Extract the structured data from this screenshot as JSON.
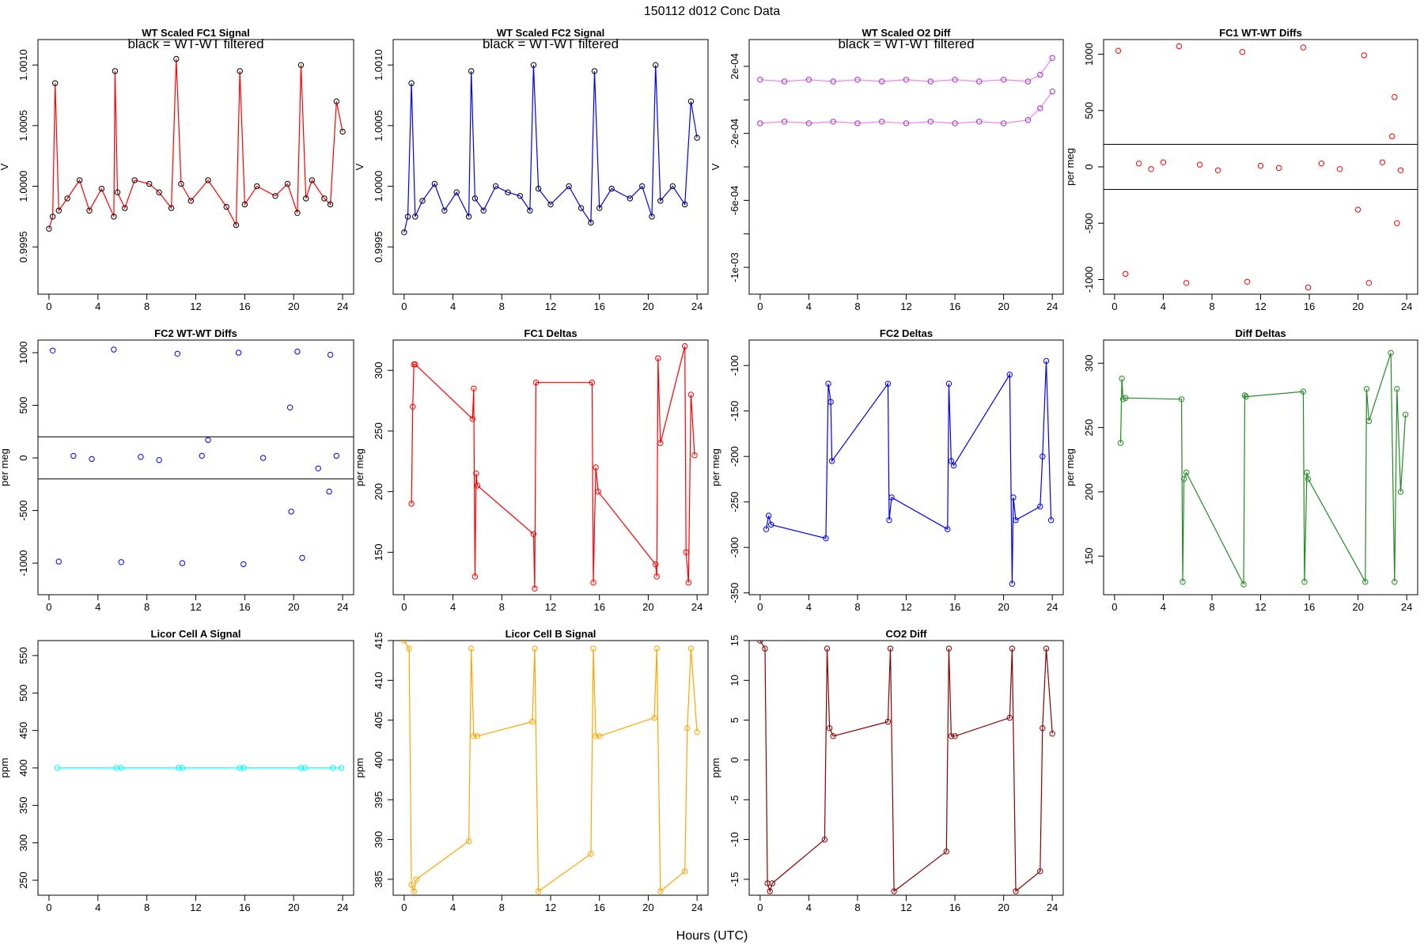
{
  "figure": {
    "suptitle": "150112    d012    Conc Data",
    "xlabel": "Hours (UTC)"
  },
  "chart_data": [
    {
      "type": "line",
      "title": "WT Scaled FC1 Signal",
      "annotation": "black = WT-WT filtered",
      "ylabel": "V",
      "color": "#ff0000",
      "marker_color": "#000000",
      "xlim": [
        -0.9,
        24.9
      ],
      "ylim": [
        0.99911,
        1.00121
      ],
      "xticks": [
        0,
        4,
        8,
        12,
        16,
        20,
        24
      ],
      "xtick_labels": [
        "0",
        "4",
        "8",
        "12",
        "16",
        "20",
        "24"
      ],
      "yticks": [
        0.9995,
        1.0,
        1.0005,
        1.001
      ],
      "ytick_labels": [
        "0.9995",
        "1.0000",
        "1.0005",
        "1.0010"
      ],
      "series": [
        {
          "x": [
            0.0,
            0.3,
            0.5,
            0.8,
            1.5,
            2.5,
            3.3,
            4.3,
            5.3,
            5.4,
            5.6,
            6.2,
            7.0,
            8.2,
            9.0,
            10.0,
            10.4,
            10.8,
            11.6,
            13.0,
            14.5,
            15.3,
            15.6,
            16.0,
            17.0,
            18.5,
            19.5,
            20.3,
            20.6,
            21.0,
            21.5,
            22.5,
            23.0,
            23.5,
            24.0
          ],
          "y": [
            0.99965,
            0.99975,
            1.00085,
            0.9998,
            0.9999,
            1.00005,
            0.9998,
            0.99998,
            0.99975,
            1.00095,
            0.99995,
            0.99982,
            1.00005,
            1.00002,
            0.99995,
            0.99982,
            1.00105,
            1.00002,
            0.99988,
            1.00005,
            0.99983,
            0.99968,
            1.00095,
            0.99985,
            1.0,
            0.99992,
            1.00002,
            0.99978,
            1.001,
            0.9999,
            1.00005,
            0.9999,
            0.99985,
            1.0007,
            1.00045
          ]
        }
      ]
    },
    {
      "type": "line",
      "title": "WT Scaled FC2 Signal",
      "annotation": "black = WT-WT filtered",
      "ylabel": "V",
      "color": "#0000ff",
      "marker_color": "#000000",
      "xlim": [
        -0.9,
        24.9
      ],
      "ylim": [
        0.99911,
        1.00121
      ],
      "xticks": [
        0,
        4,
        8,
        12,
        16,
        20,
        24
      ],
      "xtick_labels": [
        "0",
        "4",
        "8",
        "12",
        "16",
        "20",
        "24"
      ],
      "yticks": [
        0.9995,
        1.0,
        1.0005,
        1.001
      ],
      "ytick_labels": [
        "0.9995",
        "1.0000",
        "1.0005",
        "1.0010"
      ],
      "series": [
        {
          "x": [
            0.0,
            0.3,
            0.6,
            0.9,
            1.5,
            2.5,
            3.3,
            4.3,
            5.3,
            5.5,
            5.8,
            6.5,
            7.5,
            8.5,
            9.5,
            10.3,
            10.6,
            11.0,
            12.0,
            13.5,
            14.5,
            15.3,
            15.6,
            16.0,
            17.0,
            18.5,
            19.5,
            20.3,
            20.6,
            21.0,
            22.0,
            23.0,
            23.5,
            24.0
          ],
          "y": [
            0.99962,
            0.99975,
            1.00085,
            0.99975,
            0.99988,
            1.00002,
            0.9998,
            0.99995,
            0.99975,
            1.00095,
            0.9999,
            0.9998,
            1.0,
            0.99995,
            0.99992,
            0.9998,
            1.001,
            0.99998,
            0.99985,
            1.0,
            0.99982,
            0.9997,
            1.00095,
            0.99982,
            0.99998,
            0.9999,
            1.0,
            0.99975,
            1.001,
            0.99988,
            1.0,
            0.99985,
            1.0007,
            1.0004
          ]
        }
      ]
    },
    {
      "type": "line",
      "title": "WT Scaled O2 Diff",
      "annotation": "black = WT-WT filtered",
      "ylabel": "V",
      "color": "#ee82ee",
      "marker_color": "#9932cc",
      "xlim": [
        -0.9,
        24.9
      ],
      "ylim": [
        -0.00116,
        0.00036
      ],
      "xticks": [
        0,
        4,
        8,
        12,
        16,
        20,
        24
      ],
      "xtick_labels": [
        "0",
        "4",
        "8",
        "12",
        "16",
        "20",
        "24"
      ],
      "yticks": [
        -0.001,
        -0.0008,
        -0.0006,
        -0.0004,
        -0.0002,
        0.0,
        0.0002
      ],
      "ytick_labels": [
        "-1e-03",
        "",
        "-6e-04",
        "",
        "-2e-04",
        "",
        "2e-04"
      ],
      "series": [
        {
          "x": [
            0.0,
            2.0,
            4.0,
            6.0,
            8.0,
            10.0,
            12.0,
            14.0,
            16.0,
            18.0,
            20.0,
            22.0,
            23.0,
            24.0
          ],
          "y": [
            0.00012,
            0.00011,
            0.00012,
            0.00011,
            0.00012,
            0.00011,
            0.00012,
            0.00011,
            0.00012,
            0.00011,
            0.00012,
            0.00011,
            0.00015,
            0.00025
          ]
        },
        {
          "x": [
            0.0,
            2.0,
            4.0,
            6.0,
            8.0,
            10.0,
            12.0,
            14.0,
            16.0,
            18.0,
            20.0,
            22.0,
            23.0,
            24.0
          ],
          "y": [
            -0.00014,
            -0.00013,
            -0.00014,
            -0.00013,
            -0.00014,
            -0.00013,
            -0.00014,
            -0.00013,
            -0.00014,
            -0.00013,
            -0.00014,
            -0.00012,
            -5e-05,
            5e-05
          ]
        }
      ]
    },
    {
      "type": "scatter",
      "title": "FC1 WT-WT Diffs",
      "ylabel": "per meg",
      "color": "#ff0000",
      "xlim": [
        -0.9,
        24.9
      ],
      "ylim": [
        -1130,
        1130
      ],
      "xticks": [
        0,
        4,
        8,
        12,
        16,
        20,
        24
      ],
      "xtick_labels": [
        "0",
        "4",
        "8",
        "12",
        "16",
        "20",
        "24"
      ],
      "yticks": [
        -1000,
        -500,
        0,
        500,
        1000
      ],
      "ytick_labels": [
        "-1000",
        "-500",
        "0",
        "500",
        "1000"
      ],
      "hlines": [
        200,
        -200
      ],
      "series": [
        {
          "x": [
            0.3,
            0.9,
            2.0,
            3.0,
            4.0,
            5.3,
            5.9,
            7.0,
            8.5,
            10.5,
            10.9,
            12.0,
            13.5,
            15.5,
            15.9,
            17.0,
            18.5,
            20.0,
            20.5,
            20.9,
            22.0,
            22.8,
            23.0,
            23.2,
            23.5
          ],
          "y": [
            1030,
            -950,
            30,
            -20,
            40,
            1070,
            -1030,
            20,
            -30,
            1020,
            -1020,
            10,
            -10,
            1060,
            -1070,
            30,
            -20,
            -380,
            990,
            -1030,
            40,
            270,
            620,
            -500,
            -30
          ]
        }
      ]
    },
    {
      "type": "scatter",
      "title": "FC2 WT-WT Diffs",
      "ylabel": "per meg",
      "color": "#0000ff",
      "xlim": [
        -0.9,
        24.9
      ],
      "ylim": [
        -1300,
        1120
      ],
      "xticks": [
        0,
        4,
        8,
        12,
        16,
        20,
        24
      ],
      "xtick_labels": [
        "0",
        "4",
        "8",
        "12",
        "16",
        "20",
        "24"
      ],
      "yticks": [
        -1000,
        -500,
        0,
        500,
        1000
      ],
      "ytick_labels": [
        "-1000",
        "-500",
        "0",
        "500",
        "1000"
      ],
      "hlines": [
        200,
        -200
      ],
      "series": [
        {
          "x": [
            0.3,
            0.8,
            2.0,
            3.5,
            5.3,
            5.9,
            7.5,
            9.0,
            10.5,
            10.9,
            12.5,
            13.0,
            15.5,
            15.9,
            17.5,
            19.7,
            19.8,
            20.3,
            20.7,
            22.0,
            22.9,
            23.0,
            23.5
          ],
          "y": [
            1020,
            -985,
            20,
            -10,
            1030,
            -990,
            10,
            -20,
            990,
            -1000,
            20,
            170,
            1000,
            -1010,
            0,
            480,
            -510,
            1010,
            -950,
            -100,
            -320,
            980,
            20
          ]
        }
      ]
    },
    {
      "type": "line",
      "title": "FC1 Deltas",
      "ylabel": "per meg",
      "color": "#ff0000",
      "xlim": [
        -0.9,
        24.9
      ],
      "ylim": [
        115,
        325
      ],
      "xticks": [
        0,
        4,
        8,
        12,
        16,
        20,
        24
      ],
      "xtick_labels": [
        "0",
        "4",
        "8",
        "12",
        "16",
        "20",
        "24"
      ],
      "yticks": [
        150,
        200,
        250,
        300
      ],
      "ytick_labels": [
        "150",
        "200",
        "250",
        "300"
      ],
      "series": [
        {
          "x": [
            0.6,
            0.7,
            0.8,
            0.9,
            5.6,
            5.7,
            5.8,
            5.9,
            6.0,
            10.6,
            10.7,
            10.8,
            15.4,
            15.5,
            15.7,
            15.9,
            20.6,
            20.7,
            20.8,
            21.0,
            23.0,
            23.1,
            23.3,
            23.5,
            23.8
          ],
          "y": [
            190,
            270,
            305,
            305,
            260,
            285,
            130,
            215,
            205,
            165,
            120,
            290,
            290,
            125,
            220,
            200,
            140,
            130,
            310,
            240,
            320,
            150,
            125,
            280,
            230
          ]
        }
      ]
    },
    {
      "type": "line",
      "title": "FC2 Deltas",
      "ylabel": "per meg",
      "color": "#0000ff",
      "xlim": [
        -0.9,
        24.9
      ],
      "ylim": [
        -352,
        -72
      ],
      "xticks": [
        0,
        4,
        8,
        12,
        16,
        20,
        24
      ],
      "xtick_labels": [
        "0",
        "4",
        "8",
        "12",
        "16",
        "20",
        "24"
      ],
      "yticks": [
        -350,
        -300,
        -250,
        -200,
        -150,
        -100
      ],
      "ytick_labels": [
        "-350",
        "-300",
        "-250",
        "-200",
        "-150",
        "-100"
      ],
      "series": [
        {
          "x": [
            0.5,
            0.7,
            0.9,
            5.4,
            5.6,
            5.8,
            5.9,
            10.5,
            10.6,
            10.8,
            15.4,
            15.5,
            15.7,
            15.9,
            20.5,
            20.7,
            20.8,
            21.0,
            23.0,
            23.2,
            23.5,
            23.9
          ],
          "y": [
            -280,
            -265,
            -275,
            -290,
            -120,
            -140,
            -205,
            -120,
            -270,
            -245,
            -280,
            -120,
            -205,
            -210,
            -110,
            -340,
            -245,
            -270,
            -255,
            -200,
            -95,
            -270
          ]
        }
      ]
    },
    {
      "type": "line",
      "title": "Diff Deltas",
      "ylabel": "per meg",
      "color": "#228b22",
      "xlim": [
        -0.9,
        24.9
      ],
      "ylim": [
        120,
        318
      ],
      "xticks": [
        0,
        4,
        8,
        12,
        16,
        20,
        24
      ],
      "xtick_labels": [
        "0",
        "4",
        "8",
        "12",
        "16",
        "20",
        "24"
      ],
      "yticks": [
        150,
        200,
        250,
        300
      ],
      "ytick_labels": [
        "150",
        "200",
        "250",
        "300"
      ],
      "series": [
        {
          "x": [
            0.5,
            0.6,
            0.7,
            0.9,
            5.5,
            5.6,
            5.7,
            5.9,
            10.6,
            10.7,
            10.8,
            15.5,
            15.6,
            15.8,
            15.9,
            20.6,
            20.7,
            20.9,
            22.7,
            23.0,
            23.2,
            23.5,
            23.9
          ],
          "y": [
            238,
            288,
            272,
            273,
            272,
            130,
            210,
            215,
            128,
            275,
            274,
            278,
            130,
            215,
            210,
            130,
            280,
            255,
            308,
            130,
            280,
            200,
            260
          ]
        }
      ]
    },
    {
      "type": "line",
      "title": "Licor Cell A Signal",
      "ylabel": "ppm",
      "color": "#00ffff",
      "xlim": [
        -0.9,
        24.9
      ],
      "ylim": [
        230,
        570
      ],
      "xticks": [
        0,
        4,
        8,
        12,
        16,
        20,
        24
      ],
      "xtick_labels": [
        "0",
        "4",
        "8",
        "12",
        "16",
        "20",
        "24"
      ],
      "yticks": [
        250,
        300,
        350,
        400,
        450,
        500,
        550
      ],
      "ytick_labels": [
        "250",
        "300",
        "350",
        "400",
        "450",
        "500",
        "550"
      ],
      "series": [
        {
          "x": [
            0.7,
            5.5,
            5.9,
            10.6,
            10.9,
            15.6,
            15.9,
            20.6,
            20.9,
            23.2,
            23.9
          ],
          "y": [
            400,
            400,
            400,
            400,
            400,
            400,
            400,
            400,
            400,
            400,
            400
          ]
        }
      ]
    },
    {
      "type": "line",
      "title": "Licor Cell B Signal",
      "ylabel": "ppm",
      "color": "#ffa500",
      "xlim": [
        -0.9,
        24.9
      ],
      "ylim": [
        383,
        415
      ],
      "xticks": [
        0,
        4,
        8,
        12,
        16,
        20,
        24
      ],
      "xtick_labels": [
        "0",
        "4",
        "8",
        "12",
        "16",
        "20",
        "24"
      ],
      "yticks": [
        385,
        390,
        395,
        400,
        405,
        410,
        415
      ],
      "ytick_labels": [
        "385",
        "390",
        "395",
        "400",
        "405",
        "410",
        "415"
      ],
      "series": [
        {
          "x": [
            0.0,
            0.4,
            0.6,
            0.8,
            1.0,
            5.3,
            5.5,
            5.7,
            6.0,
            10.5,
            10.7,
            11.0,
            15.3,
            15.5,
            15.7,
            16.0,
            20.5,
            20.7,
            21.0,
            23.0,
            23.2,
            23.5,
            24.0
          ],
          "y": [
            415,
            414,
            384.3,
            383.5,
            385,
            389.8,
            414,
            403,
            403,
            404.8,
            414,
            383.5,
            388.2,
            414,
            403,
            403,
            405.3,
            414,
            383.5,
            386,
            404,
            414,
            403.5
          ]
        }
      ]
    },
    {
      "type": "line",
      "title": "CO2 Diff",
      "ylabel": "ppm",
      "color": "#8b0000",
      "xlim": [
        -0.9,
        24.9
      ],
      "ylim": [
        -17,
        15
      ],
      "xticks": [
        0,
        4,
        8,
        12,
        16,
        20,
        24
      ],
      "xtick_labels": [
        "0",
        "4",
        "8",
        "12",
        "16",
        "20",
        "24"
      ],
      "yticks": [
        -15,
        -10,
        -5,
        0,
        5,
        10,
        15
      ],
      "ytick_labels": [
        "-15",
        "-10",
        "-5",
        "0",
        "5",
        "10",
        "15"
      ],
      "series": [
        {
          "x": [
            0.0,
            0.4,
            0.6,
            0.8,
            1.0,
            5.3,
            5.5,
            5.7,
            6.0,
            10.5,
            10.7,
            11.0,
            15.3,
            15.5,
            15.7,
            16.0,
            20.5,
            20.7,
            21.0,
            23.0,
            23.2,
            23.5,
            24.0
          ],
          "y": [
            15,
            14,
            -15.5,
            -16.5,
            -15.5,
            -10,
            14,
            4,
            3,
            4.8,
            14,
            -16.5,
            -11.5,
            14,
            3,
            3,
            5.3,
            14,
            -16.5,
            -14,
            4,
            14,
            3.3
          ]
        }
      ]
    }
  ]
}
